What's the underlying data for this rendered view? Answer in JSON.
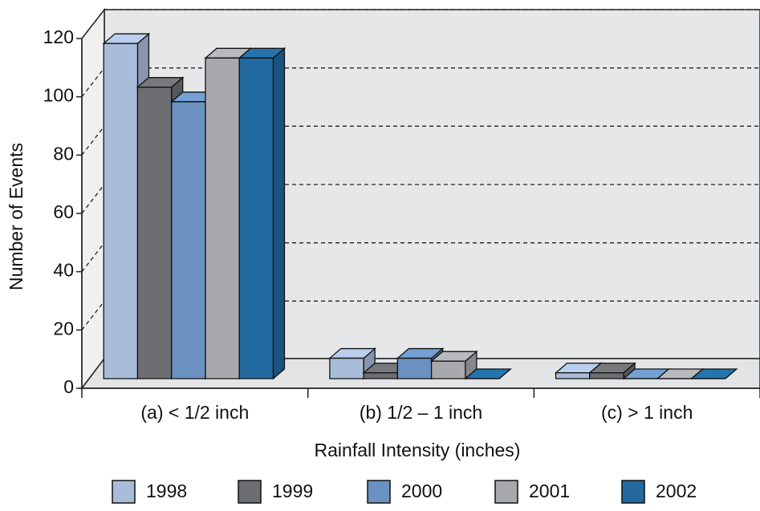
{
  "chart_data": {
    "type": "bar3d",
    "x_label": "Rainfall Intensity (inches)",
    "y_label": "Number of Events",
    "categories": [
      "(a) < 1/2 inch",
      "(b) 1/2 – 1 inch",
      "(c) > 1 inch"
    ],
    "series": [
      {
        "name": "1998",
        "color": "#a9bcd9",
        "values": [
          115,
          7,
          2
        ]
      },
      {
        "name": "1999",
        "color": "#6d6e71",
        "values": [
          100,
          2,
          2
        ]
      },
      {
        "name": "2000",
        "color": "#6a91c0",
        "values": [
          95,
          7,
          0
        ]
      },
      {
        "name": "2001",
        "color": "#a7a9ac",
        "values": [
          110,
          6,
          0
        ]
      },
      {
        "name": "2002",
        "color": "#21699e",
        "values": [
          110,
          0,
          0
        ]
      }
    ],
    "ylim": [
      0,
      120
    ],
    "yticks": [
      0,
      20,
      40,
      60,
      80,
      100,
      120
    ],
    "grid": true
  }
}
